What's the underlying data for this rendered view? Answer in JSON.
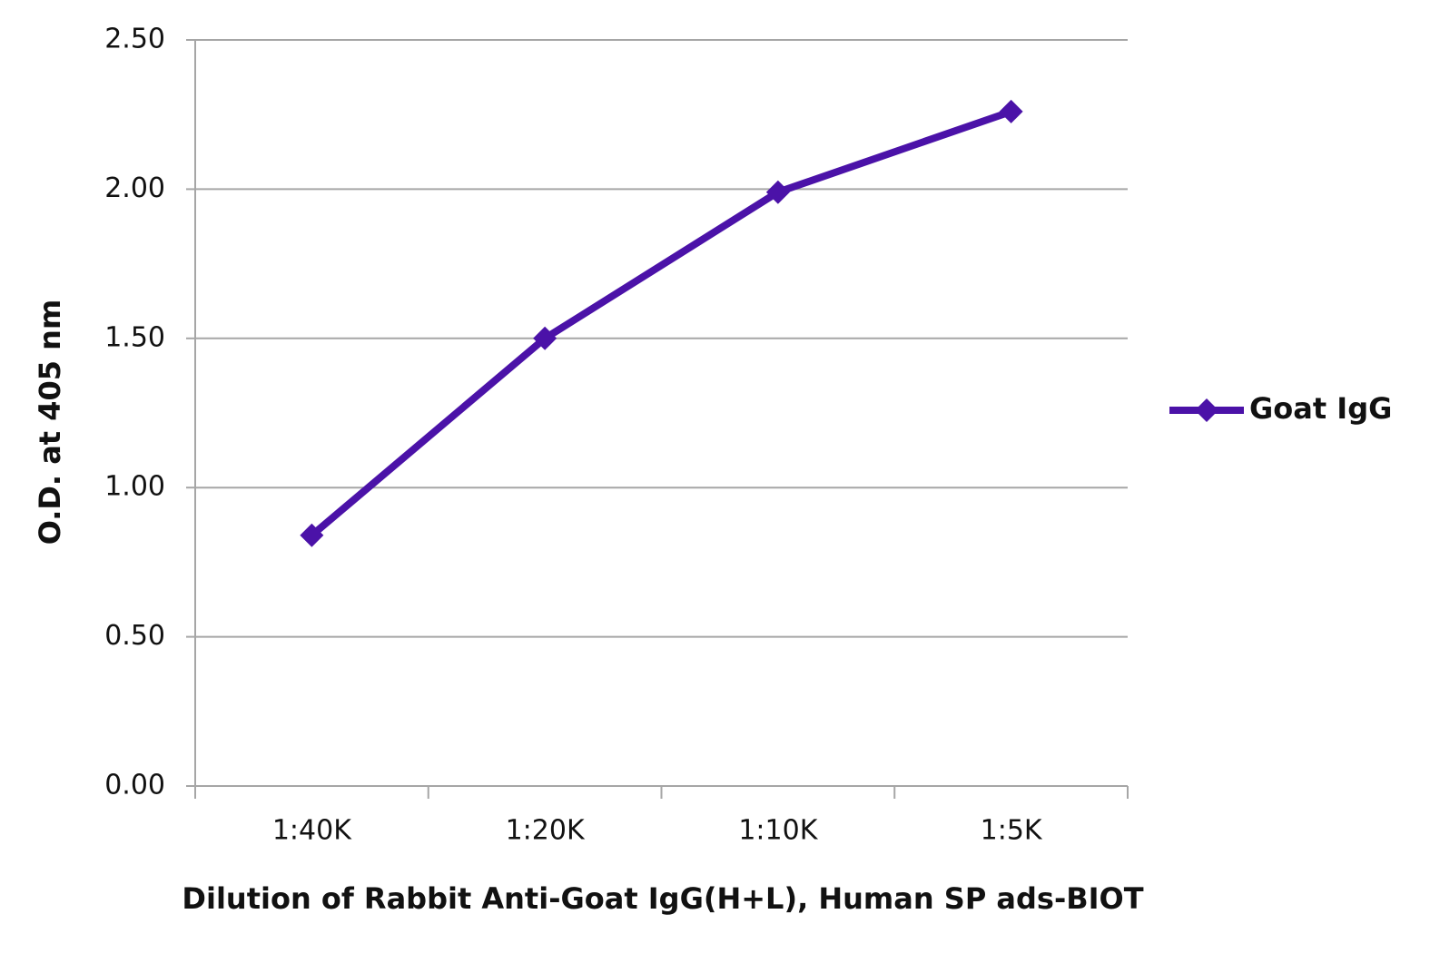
{
  "chart_data": {
    "type": "line",
    "y_label": "O.D. at 405 nm",
    "x_label": "Dilution of Rabbit Anti-Goat IgG(H+L), Human SP ads-BIOT",
    "categories": [
      "1:40K",
      "1:20K",
      "1:10K",
      "1:5K"
    ],
    "series": [
      {
        "name": "Goat IgG",
        "color": "#4b12a8",
        "values": [
          0.84,
          1.5,
          1.99,
          2.26
        ]
      }
    ],
    "ylim": [
      0,
      2.5
    ],
    "yticks": [
      {
        "value": 0,
        "label": "0.00"
      },
      {
        "value": 0.5,
        "label": "0.50"
      },
      {
        "value": 1,
        "label": "1.00"
      },
      {
        "value": 1.5,
        "label": "1.50"
      },
      {
        "value": 2,
        "label": "2.00"
      },
      {
        "value": 2.5,
        "label": "2.50"
      }
    ],
    "grid": true,
    "legend": "right"
  }
}
